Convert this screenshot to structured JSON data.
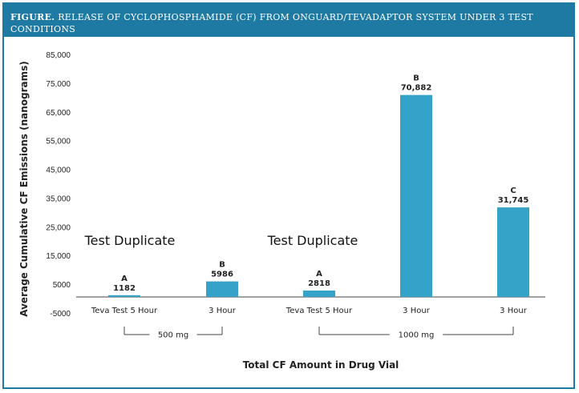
{
  "header": {
    "lead": "FIGURE.",
    "title": " RELEASE OF CYCLOPHOSPHAMIDE (CF) FROM ONGUARD/TEVADAPTOR SYSTEM UNDER 3 TEST CONDITIONS"
  },
  "chart_data": {
    "type": "bar",
    "title": "RELEASE OF CYCLOPHOSPHAMIDE (CF) FROM ONGUARD/TEVADAPTOR SYSTEM UNDER 3 TEST CONDITIONS",
    "xlabel": "Total CF Amount in Drug Vial",
    "ylabel": "Average Cumulative CF Emissions (nanograms)",
    "ylim": [
      -5000,
      85000
    ],
    "yticks": [
      "85,000",
      "75,000",
      "65,000",
      "55,000",
      "45,000",
      "35,000",
      "25,000",
      "15,000",
      "5000",
      "-5000"
    ],
    "ytick_values": [
      85000,
      75000,
      65000,
      55000,
      45000,
      35000,
      25000,
      15000,
      5000,
      -5000
    ],
    "categories": [
      "Teva Test 5 Hour",
      "3 Hour",
      "Teva Test 5 Hour",
      "3 Hour",
      "3 Hour"
    ],
    "values": [
      1182,
      5986,
      2818,
      70882,
      31745
    ],
    "value_labels": [
      "1182",
      "5986",
      "2818",
      "70,882",
      "31,745"
    ],
    "letters": [
      "A",
      "B",
      "A",
      "B",
      "C"
    ],
    "groups": [
      {
        "label": "500 mg",
        "from": 0,
        "to": 1
      },
      {
        "label": "1000 mg",
        "from": 2,
        "to": 4
      }
    ],
    "annotations": [
      "Test Duplicate",
      "Test Duplicate"
    ],
    "bar_color": "#35a2c7",
    "grid": false
  }
}
